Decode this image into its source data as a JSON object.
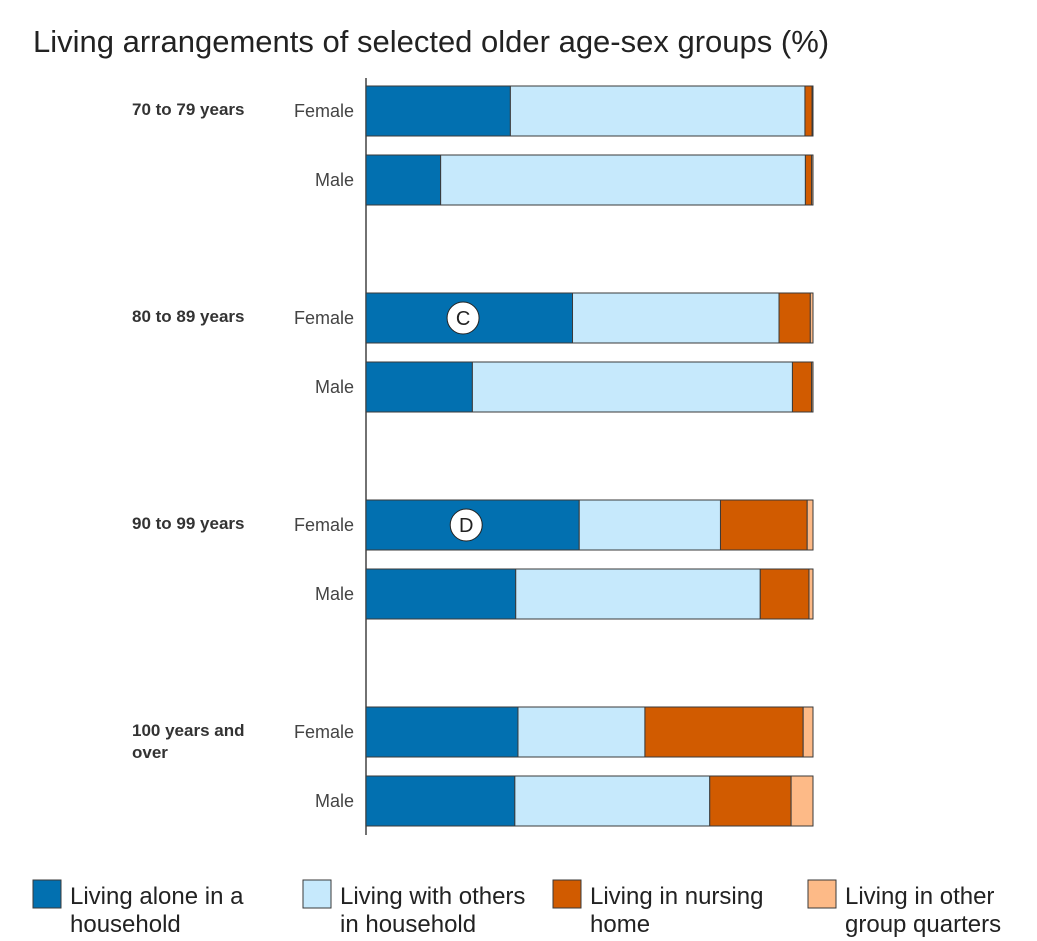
{
  "chart_data": {
    "type": "bar",
    "orientation": "horizontal",
    "stacked": true,
    "title": "Living arrangements of selected older age-sex groups (%)",
    "xlim": [
      0,
      100
    ],
    "grid": false,
    "legend_placement": "bottom",
    "groups": [
      {
        "label": [
          "70 to 79 years"
        ],
        "bars": [
          {
            "label": "Female",
            "values": [
              32.3,
              65.9,
              1.6,
              0.2
            ]
          },
          {
            "label": "Male",
            "values": [
              16.7,
              81.6,
              1.4,
              0.3
            ]
          }
        ]
      },
      {
        "label": [
          "80 to 89 years"
        ],
        "bars": [
          {
            "label": "Female",
            "values": [
              46.2,
              46.2,
              7.0,
              0.6
            ],
            "marker": "C"
          },
          {
            "label": "Male",
            "values": [
              23.8,
              71.6,
              4.3,
              0.3
            ]
          }
        ]
      },
      {
        "label": [
          "90 to 99 years"
        ],
        "bars": [
          {
            "label": "Female",
            "values": [
              47.7,
              31.6,
              19.4,
              1.3
            ],
            "marker": "D"
          },
          {
            "label": "Male",
            "values": [
              33.5,
              54.7,
              10.9,
              0.9
            ]
          }
        ]
      },
      {
        "label": [
          "100 years and",
          "over"
        ],
        "bars": [
          {
            "label": "Female",
            "values": [
              34.0,
              28.4,
              35.4,
              2.2
            ]
          },
          {
            "label": "Male",
            "values": [
              33.3,
              43.6,
              18.2,
              4.9
            ]
          }
        ]
      }
    ],
    "series": [
      {
        "name": [
          "Living alone in a",
          "household"
        ],
        "color": "#0270b0"
      },
      {
        "name": [
          "Living with others",
          "in household"
        ],
        "color": "#c6e9fc"
      },
      {
        "name": [
          "Living in nursing",
          "home"
        ],
        "color": "#d15b00"
      },
      {
        "name": [
          "Living in other",
          "group quarters"
        ],
        "color": "#fdba87"
      }
    ]
  }
}
